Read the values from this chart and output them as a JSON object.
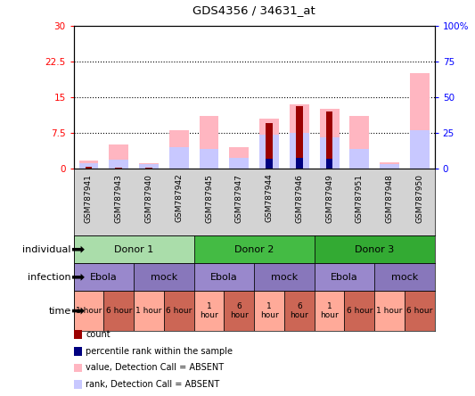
{
  "title": "GDS4356 / 34631_at",
  "samples": [
    "GSM787941",
    "GSM787943",
    "GSM787940",
    "GSM787942",
    "GSM787945",
    "GSM787947",
    "GSM787944",
    "GSM787946",
    "GSM787949",
    "GSM787951",
    "GSM787948",
    "GSM787950"
  ],
  "value_pink": [
    1.6,
    5.0,
    1.0,
    8.0,
    11.0,
    4.5,
    10.5,
    13.5,
    12.5,
    11.0,
    1.2,
    20.0
  ],
  "rank_lightblue": [
    1.0,
    1.8,
    0.8,
    4.5,
    4.0,
    2.2,
    7.0,
    7.5,
    6.5,
    4.0,
    0.8,
    8.0
  ],
  "count_darkred": [
    0.4,
    0.2,
    0.1,
    0.0,
    0.0,
    0.0,
    9.5,
    13.0,
    12.0,
    0.0,
    0.0,
    0.0
  ],
  "percentile_blue": [
    0.0,
    0.0,
    0.0,
    0.0,
    0.0,
    0.0,
    7.0,
    7.5,
    6.5,
    0.0,
    0.0,
    0.0
  ],
  "ylim_left": [
    0,
    30
  ],
  "ylim_right": [
    0,
    100
  ],
  "yticks_left": [
    0,
    7.5,
    15,
    22.5,
    30
  ],
  "yticks_right": [
    0,
    25,
    50,
    75,
    100
  ],
  "ytick_labels_left": [
    "0",
    "7.5",
    "15",
    "22.5",
    "30"
  ],
  "ytick_labels_right": [
    "0",
    "25",
    "50",
    "75",
    "100%"
  ],
  "color_darkred": "#9B0000",
  "color_blue": "#000080",
  "color_pink": "#FFB6C1",
  "color_lightblue": "#C8C8FF",
  "individual_groups": [
    {
      "label": "Donor 1",
      "start": 0,
      "end": 4,
      "color": "#AADDAA"
    },
    {
      "label": "Donor 2",
      "start": 4,
      "end": 8,
      "color": "#44BB44"
    },
    {
      "label": "Donor 3",
      "start": 8,
      "end": 12,
      "color": "#33AA33"
    }
  ],
  "infection_groups": [
    {
      "label": "Ebola",
      "start": 0,
      "end": 2,
      "color": "#9988CC"
    },
    {
      "label": "mock",
      "start": 2,
      "end": 4,
      "color": "#8877BB"
    },
    {
      "label": "Ebola",
      "start": 4,
      "end": 6,
      "color": "#9988CC"
    },
    {
      "label": "mock",
      "start": 6,
      "end": 8,
      "color": "#8877BB"
    },
    {
      "label": "Ebola",
      "start": 8,
      "end": 10,
      "color": "#9988CC"
    },
    {
      "label": "mock",
      "start": 10,
      "end": 12,
      "color": "#8877BB"
    }
  ],
  "time_groups": [
    {
      "label": "1 hour",
      "start": 0,
      "end": 1,
      "color": "#FFAA99"
    },
    {
      "label": "6 hour",
      "start": 1,
      "end": 2,
      "color": "#CC6655"
    },
    {
      "label": "1 hour",
      "start": 2,
      "end": 3,
      "color": "#FFAA99"
    },
    {
      "label": "6 hour",
      "start": 3,
      "end": 4,
      "color": "#CC6655"
    },
    {
      "label": "1\nhour",
      "start": 4,
      "end": 5,
      "color": "#FFAA99"
    },
    {
      "label": "6\nhour",
      "start": 5,
      "end": 6,
      "color": "#CC6655"
    },
    {
      "label": "1\nhour",
      "start": 6,
      "end": 7,
      "color": "#FFAA99"
    },
    {
      "label": "6\nhour",
      "start": 7,
      "end": 8,
      "color": "#CC6655"
    },
    {
      "label": "1\nhour",
      "start": 8,
      "end": 9,
      "color": "#FFAA99"
    },
    {
      "label": "6 hour",
      "start": 9,
      "end": 10,
      "color": "#CC6655"
    },
    {
      "label": "1 hour",
      "start": 10,
      "end": 11,
      "color": "#FFAA99"
    },
    {
      "label": "6 hour",
      "start": 11,
      "end": 12,
      "color": "#CC6655"
    }
  ],
  "row_labels": [
    "individual",
    "infection",
    "time"
  ],
  "legend_items": [
    {
      "color": "#9B0000",
      "label": "count"
    },
    {
      "color": "#000080",
      "label": "percentile rank within the sample"
    },
    {
      "color": "#FFB6C1",
      "label": "value, Detection Call = ABSENT"
    },
    {
      "color": "#C8C8FF",
      "label": "rank, Detection Call = ABSENT"
    }
  ],
  "bar_width": 0.65
}
